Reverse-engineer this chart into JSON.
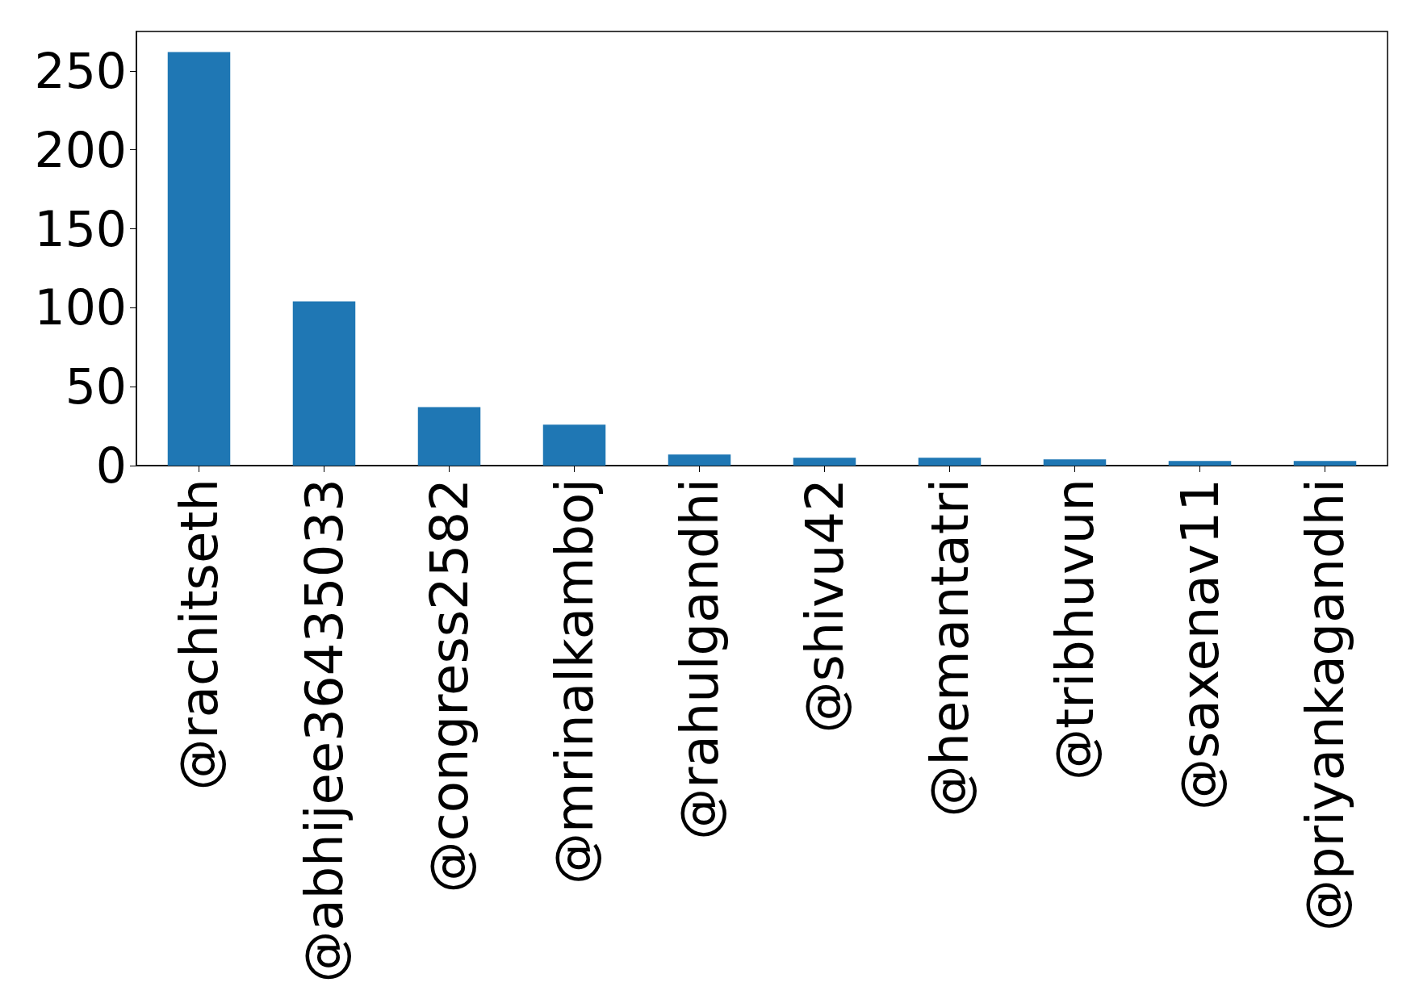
{
  "chart_data": {
    "type": "bar",
    "categories": [
      "@rachitseth",
      "@abhijee36435033",
      "@congress2582",
      "@mrinalkamboj",
      "@rahulgandhi",
      "@shivu42",
      "@hemantatri",
      "@tribhuvun",
      "@saxenav11",
      "@priyankagandhi"
    ],
    "values": [
      262,
      104,
      37,
      26,
      7,
      5,
      5,
      4,
      3,
      3
    ],
    "color": "#1f77b4",
    "ylim": [
      0,
      275
    ],
    "yticks": [
      0,
      50,
      100,
      150,
      200,
      250
    ],
    "grid": false
  }
}
